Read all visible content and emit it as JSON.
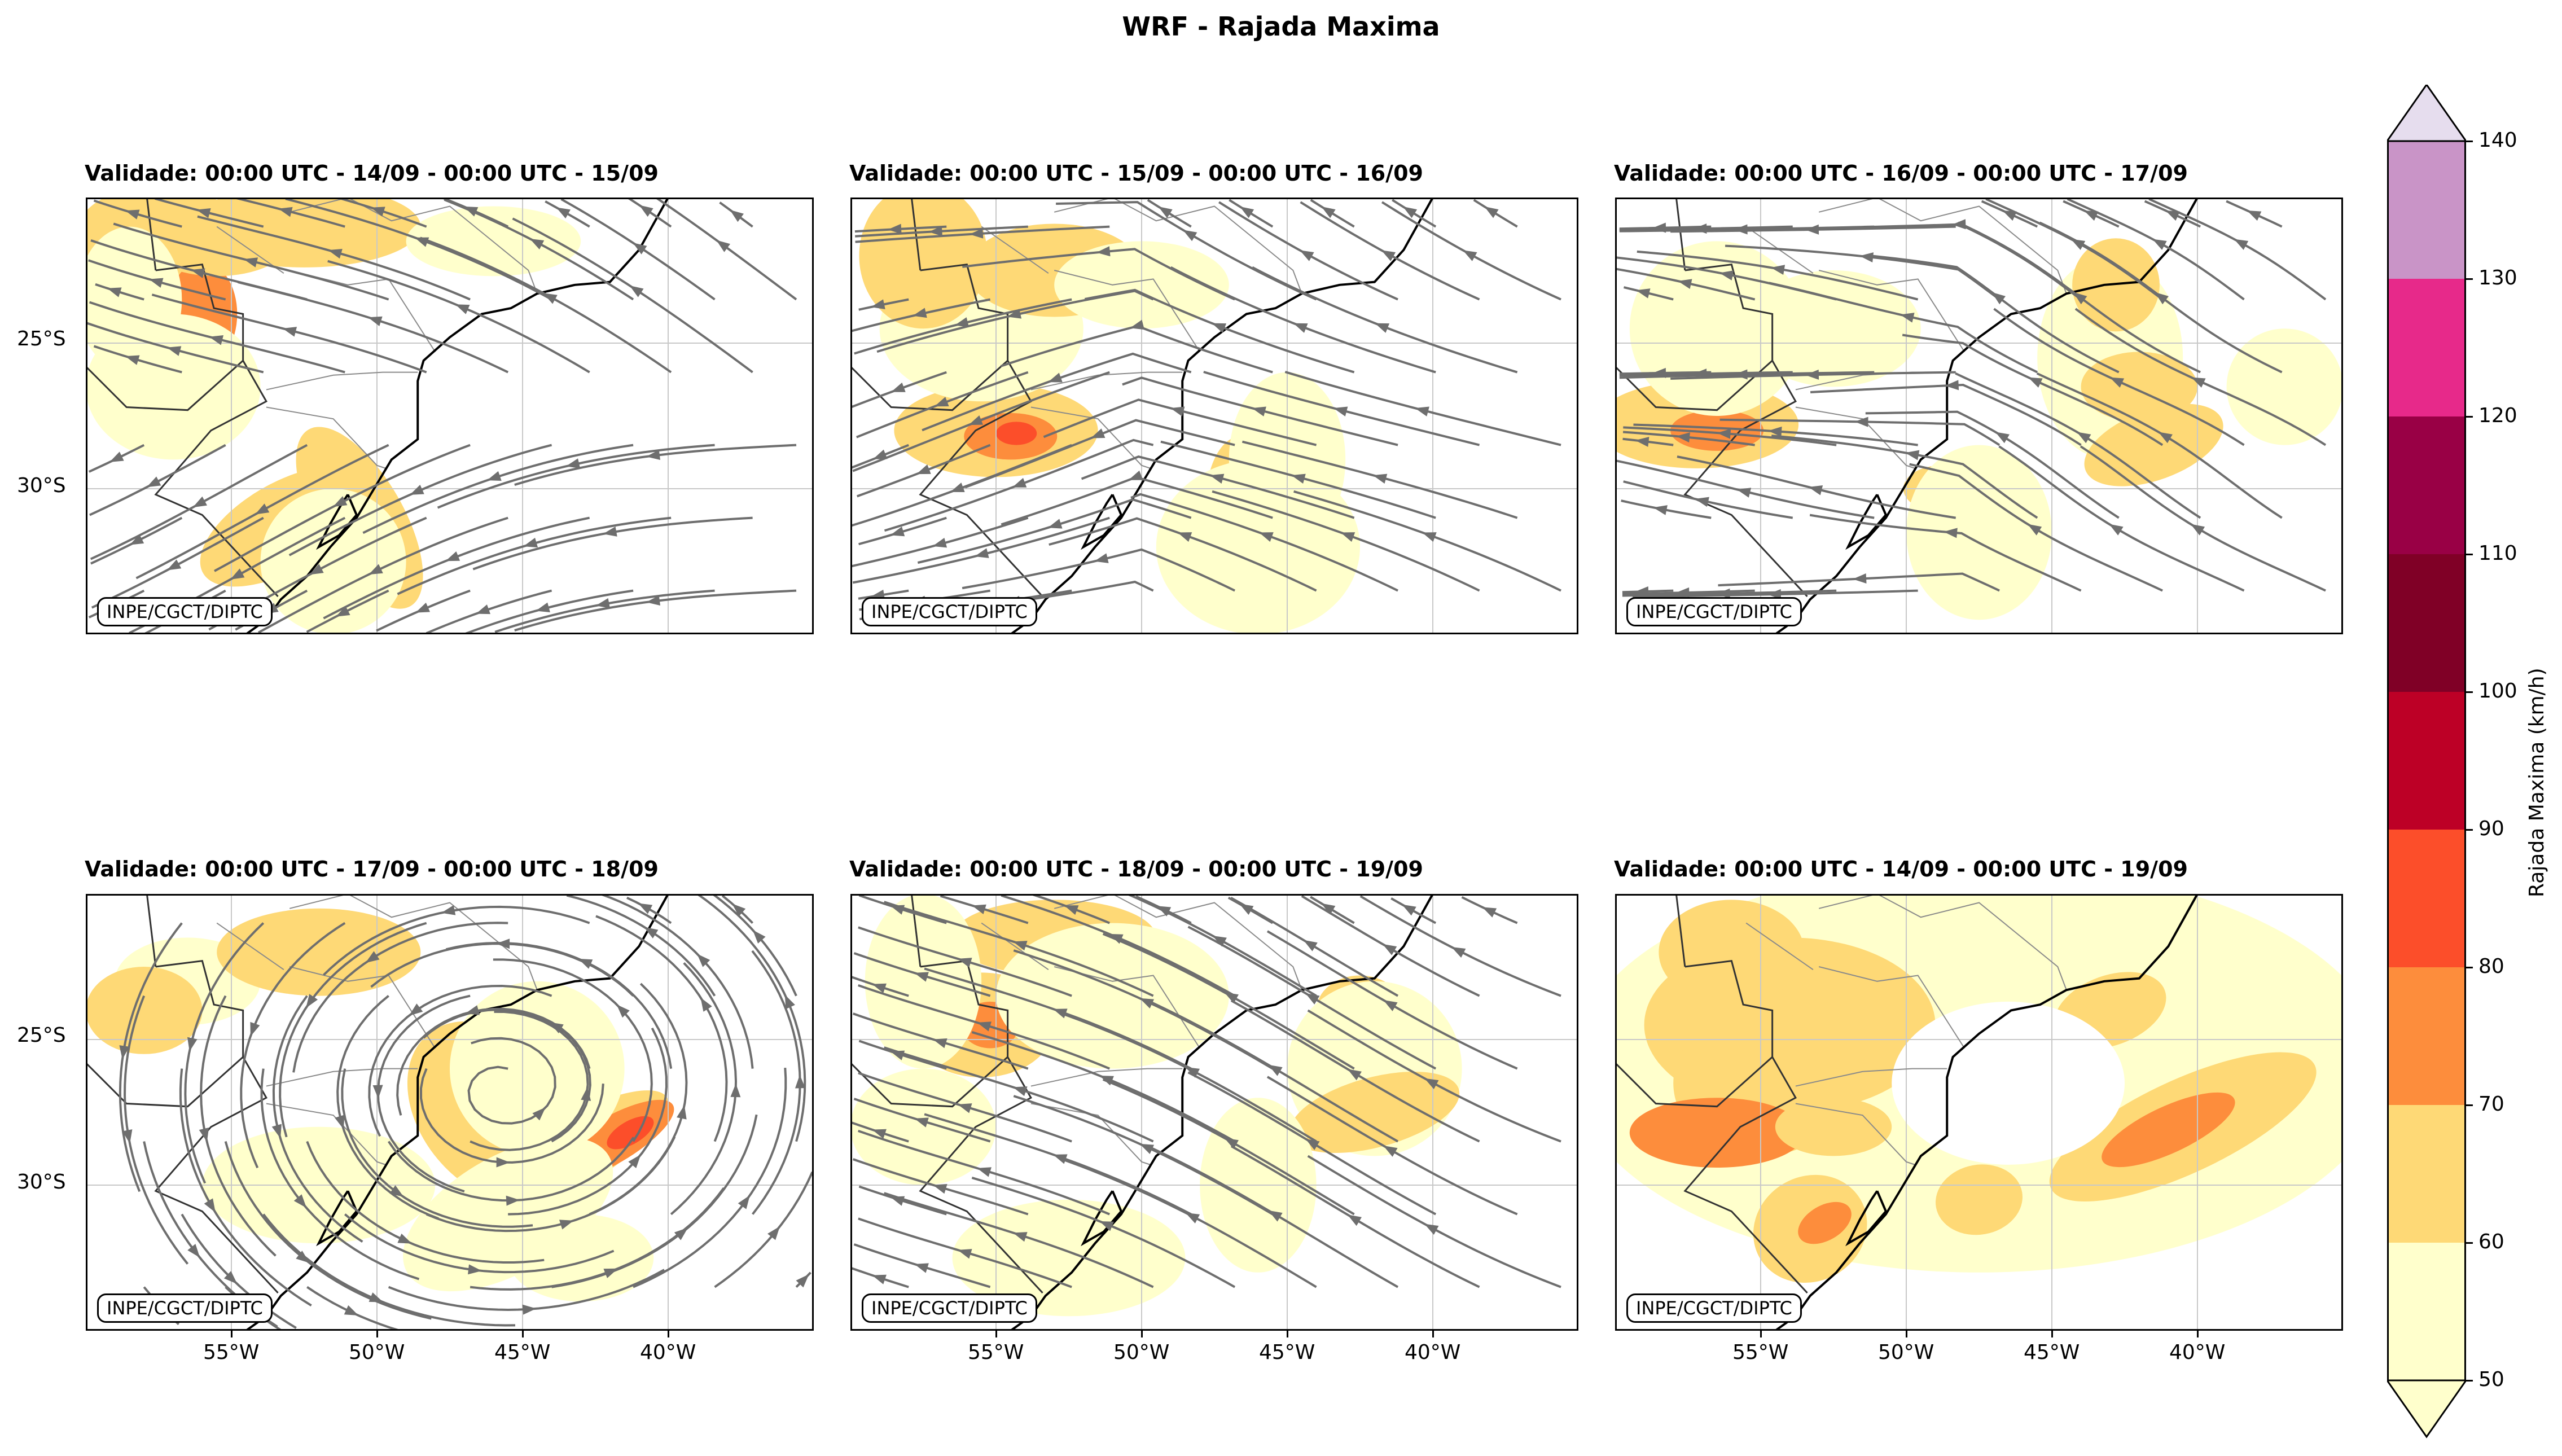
{
  "figure": {
    "title": "WRF - Rajada Maxima",
    "credit": "INPE/CGCT/DIPTC",
    "y_ticks": [
      "25°S",
      "30°S"
    ],
    "x_ticks": [
      "55°W",
      "50°W",
      "45°W",
      "40°W"
    ],
    "extent": {
      "lon": [
        -60,
        -35
      ],
      "lat": [
        -35,
        -20
      ]
    }
  },
  "panels": [
    {
      "title": "Validade: 00:00 UTC - 14/09 - 00:00 UTC - 15/09"
    },
    {
      "title": "Validade: 00:00 UTC - 15/09 - 00:00 UTC - 16/09"
    },
    {
      "title": "Validade: 00:00 UTC - 16/09 - 00:00 UTC - 17/09"
    },
    {
      "title": "Validade: 00:00 UTC - 17/09 - 00:00 UTC - 18/09"
    },
    {
      "title": "Validade: 00:00 UTC - 18/09 - 00:00 UTC - 19/09"
    },
    {
      "title": "Validade: 00:00 UTC - 14/09 - 00:00 UTC - 19/09"
    }
  ],
  "colorbar": {
    "label": "Rajada Maxima (km/h)",
    "ticks": [
      "50",
      "60",
      "70",
      "80",
      "90",
      "100",
      "110",
      "120",
      "130",
      "140"
    ],
    "colors": [
      "#ffffcc",
      "#fed976",
      "#fd8d3c",
      "#fc4e2a",
      "#bd0026",
      "#800026",
      "#990045",
      "#e7298a",
      "#c994c7",
      "#e6ddee"
    ]
  }
}
